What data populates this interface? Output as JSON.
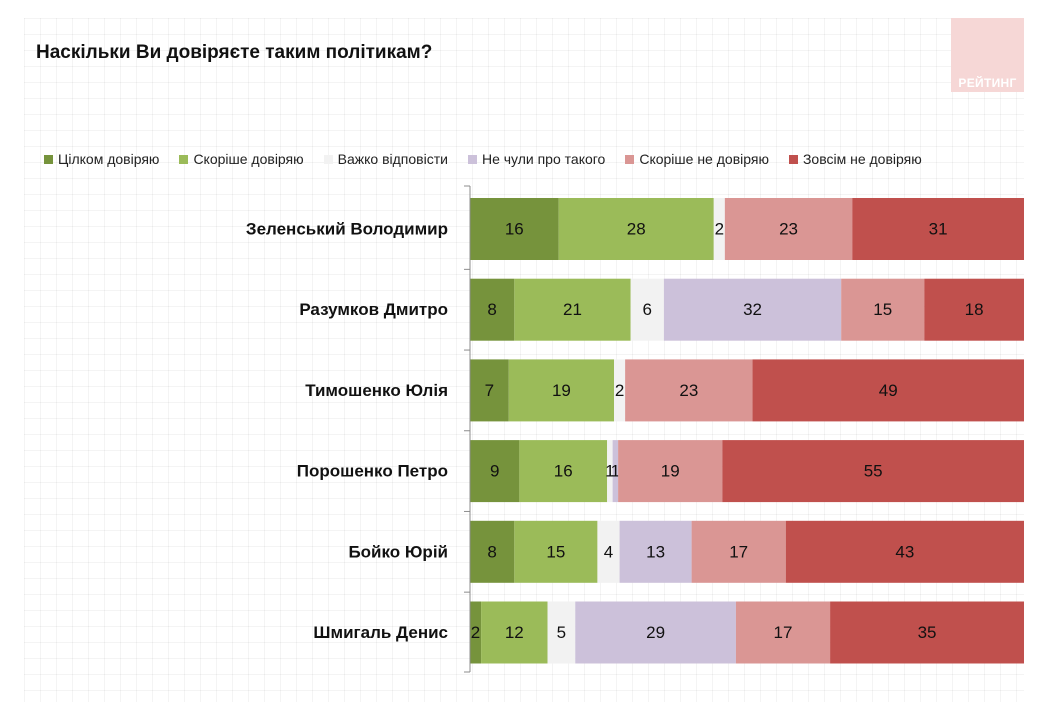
{
  "title": "Наскільки Ви довіряєте таким політикам?",
  "logo": {
    "text": "РЕЙТИНГ"
  },
  "chart_data": {
    "type": "bar",
    "orientation": "horizontal",
    "stacked": true,
    "legend_position": "top",
    "grid": false,
    "xlim": [
      0,
      100
    ],
    "categories": [
      "Зеленський Володимир",
      "Разумков Дмитро",
      "Тимошенко Юлія",
      "Порошенко Петро",
      "Бойко Юрій",
      "Шмигаль Денис"
    ],
    "series": [
      {
        "name": "Цілком довіряю",
        "color": "#76933c",
        "values": [
          16,
          8,
          7,
          9,
          8,
          2
        ]
      },
      {
        "name": "Скоріше довіряю",
        "color": "#9bbb59",
        "values": [
          28,
          21,
          19,
          16,
          15,
          12
        ]
      },
      {
        "name": "Важко відповісти",
        "color": "#f2f2f2",
        "values": [
          2,
          6,
          2,
          1,
          4,
          5
        ]
      },
      {
        "name": "Не чули про такого",
        "color": "#ccc1da",
        "values": [
          0,
          32,
          0,
          1,
          13,
          29
        ]
      },
      {
        "name": "Скоріше не довіряю",
        "color": "#da9694",
        "values": [
          23,
          15,
          23,
          19,
          17,
          17
        ]
      },
      {
        "name": "Зовсім не довіряю",
        "color": "#c0504d",
        "values": [
          31,
          18,
          49,
          55,
          43,
          35
        ]
      }
    ]
  }
}
